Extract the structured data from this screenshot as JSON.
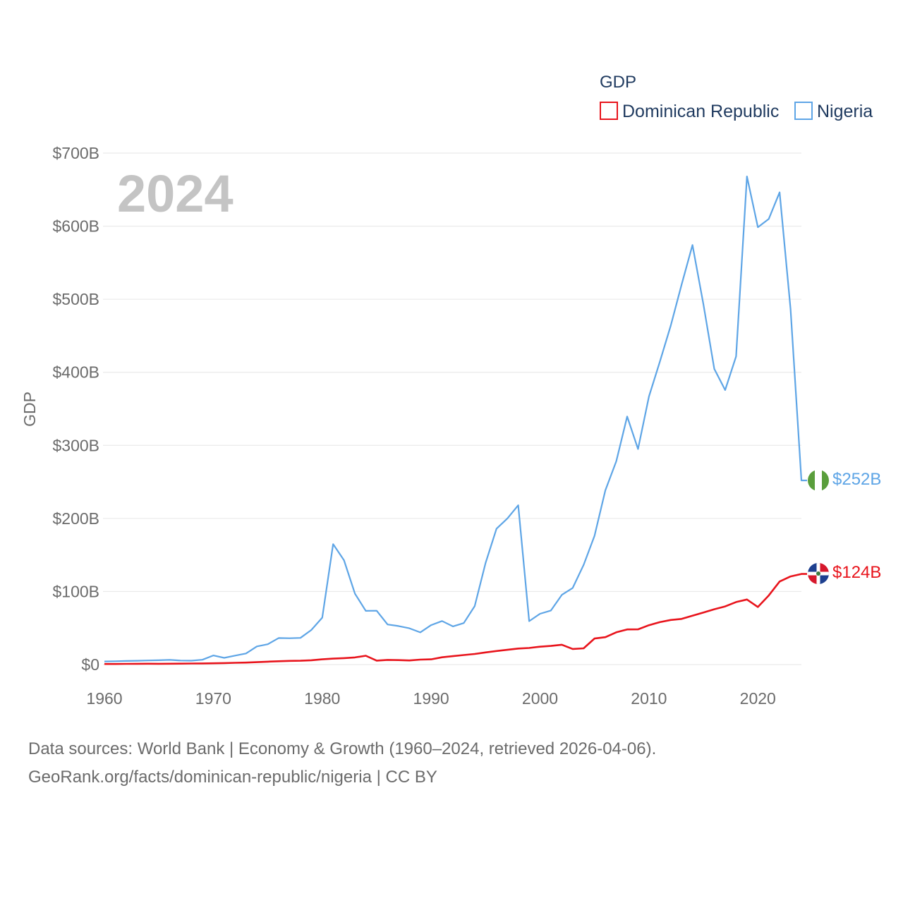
{
  "chart_data": {
    "type": "line",
    "legend_title": "GDP",
    "ylabel": "GDP",
    "highlight_year": "2024",
    "xlim": [
      1960,
      2024
    ],
    "ylim": [
      0,
      700
    ],
    "x_ticks": [
      1960,
      1970,
      1980,
      1990,
      2000,
      2010,
      2020
    ],
    "y_ticks": [
      {
        "value": 0,
        "label": "$0"
      },
      {
        "value": 100,
        "label": "$100B"
      },
      {
        "value": 200,
        "label": "$200B"
      },
      {
        "value": 300,
        "label": "$300B"
      },
      {
        "value": 400,
        "label": "$400B"
      },
      {
        "value": 500,
        "label": "$500B"
      },
      {
        "value": 600,
        "label": "$600B"
      },
      {
        "value": 700,
        "label": "$700B"
      }
    ],
    "x": [
      1960,
      1961,
      1962,
      1963,
      1964,
      1965,
      1966,
      1967,
      1968,
      1969,
      1970,
      1971,
      1972,
      1973,
      1974,
      1975,
      1976,
      1977,
      1978,
      1979,
      1980,
      1981,
      1982,
      1983,
      1984,
      1985,
      1986,
      1987,
      1988,
      1989,
      1990,
      1991,
      1992,
      1993,
      1994,
      1995,
      1996,
      1997,
      1998,
      1999,
      2000,
      2001,
      2002,
      2003,
      2004,
      2005,
      2006,
      2007,
      2008,
      2009,
      2010,
      2011,
      2012,
      2013,
      2014,
      2015,
      2016,
      2017,
      2018,
      2019,
      2020,
      2021,
      2022,
      2023,
      2024
    ],
    "series": [
      {
        "name": "Dominican Republic",
        "color": "#e8141c",
        "end_label": "$124B",
        "flag": "dominican-republic-flag",
        "values": [
          0.8,
          0.8,
          1.0,
          1.1,
          1.2,
          1.1,
          1.2,
          1.3,
          1.4,
          1.5,
          1.7,
          2.0,
          2.4,
          2.7,
          3.3,
          4.0,
          4.5,
          5.0,
          5.2,
          5.9,
          7.1,
          8.1,
          8.8,
          9.8,
          12.1,
          5.4,
          6.4,
          6.1,
          5.6,
          6.8,
          7.1,
          9.9,
          11.5,
          13.0,
          14.5,
          16.6,
          18.5,
          20.2,
          21.9,
          22.7,
          24.4,
          25.5,
          27.1,
          21.3,
          22.2,
          35.6,
          37.5,
          44.1,
          48.1,
          48.2,
          53.9,
          58.0,
          61.0,
          62.5,
          66.9,
          71.2,
          75.7,
          79.6,
          85.5,
          89.0,
          78.8,
          94.5,
          113.6,
          120.6,
          124.0
        ]
      },
      {
        "name": "Nigeria",
        "color": "#5ea5e6",
        "end_label": "$252B",
        "flag": "nigeria-flag",
        "values": [
          4.2,
          4.5,
          4.9,
          5.2,
          5.6,
          5.9,
          6.4,
          5.5,
          5.3,
          6.6,
          12.5,
          9.2,
          12.3,
          15.2,
          24.8,
          27.8,
          36.3,
          36.0,
          36.5,
          47.3,
          64.2,
          164.8,
          142.8,
          97.1,
          73.5,
          73.7,
          54.8,
          52.7,
          49.6,
          44.0,
          54.0,
          59.6,
          52.2,
          56.8,
          80.0,
          139.0,
          186.0,
          200.0,
          218.0,
          59.4,
          69.5,
          74.0,
          95.4,
          104.9,
          136.4,
          176.1,
          238.5,
          278.3,
          339.5,
          295.0,
          366.9,
          414.4,
          463.9,
          520.1,
          574.2,
          493.0,
          404.6,
          375.7,
          421.7,
          668.0,
          598.5,
          609.8,
          646.3,
          486.7,
          252.0
        ]
      }
    ]
  },
  "footer": {
    "line1": "Data sources: World Bank | Economy & Growth (1960–2024, retrieved 2026-04-06).",
    "line2": "GeoRank.org/facts/dominican-republic/nigeria | CC BY"
  }
}
